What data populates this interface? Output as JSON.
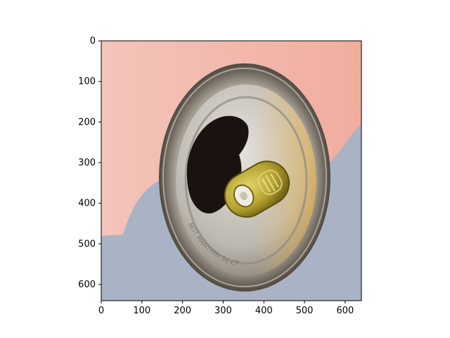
{
  "image": {
    "subject": "top-of-open-aluminum-can-with-pull-tab",
    "colors": {
      "background_top": "#f2b8ae",
      "background_bottom": "#a9b4c6",
      "can_rim": "#8c8478",
      "can_lid": "#c7c4bf",
      "opening": "#1a1210",
      "pull_tab": "#b8a42a"
    },
    "embossed_text": "NOT MANYHIW 5¢ CT"
  },
  "axes": {
    "x": {
      "range": [
        0,
        640
      ],
      "ticks": [
        "0",
        "100",
        "200",
        "300",
        "400",
        "500",
        "600"
      ]
    },
    "y": {
      "range": [
        0,
        640
      ],
      "ticks": [
        "0",
        "100",
        "200",
        "300",
        "400",
        "500",
        "600"
      ],
      "inverted": true
    }
  }
}
